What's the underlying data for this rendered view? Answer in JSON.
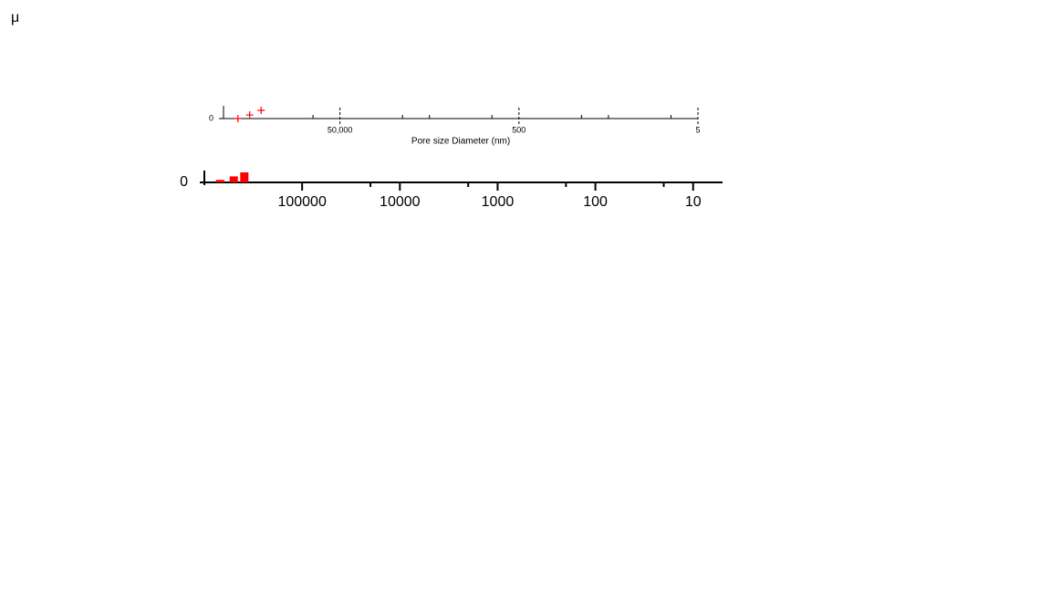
{
  "symbol": "μ",
  "chart_data": [
    {
      "type": "scatter",
      "x_label": "Pore size Diameter (nm)",
      "log_x": true,
      "color": "#ff0000",
      "marker": "+",
      "x": [
        690000,
        510000,
        380000
      ],
      "values": [
        0,
        0.33,
        0.75
      ],
      "xlim": [
        1000000,
        5
      ],
      "ylim": [
        0,
        1
      ],
      "xticks": [
        {
          "value": 50000,
          "label": "50,000"
        },
        500,
        5
      ],
      "xminorticks": [
        100000,
        10000,
        5000,
        1000,
        100,
        50,
        10
      ],
      "yticks": [
        0
      ]
    },
    {
      "type": "bar",
      "log_x": true,
      "color": "#ff0000",
      "x": [
        690000,
        500000,
        390000
      ],
      "values": [
        0.25,
        0.6,
        1
      ],
      "xlim": [
        1000000,
        5
      ],
      "ylim": [
        0,
        1
      ],
      "xticks": [
        100000,
        10000,
        1000,
        100,
        10
      ],
      "xminorticks": [
        20000,
        2000,
        200,
        20
      ],
      "yticks": [
        0
      ]
    }
  ]
}
